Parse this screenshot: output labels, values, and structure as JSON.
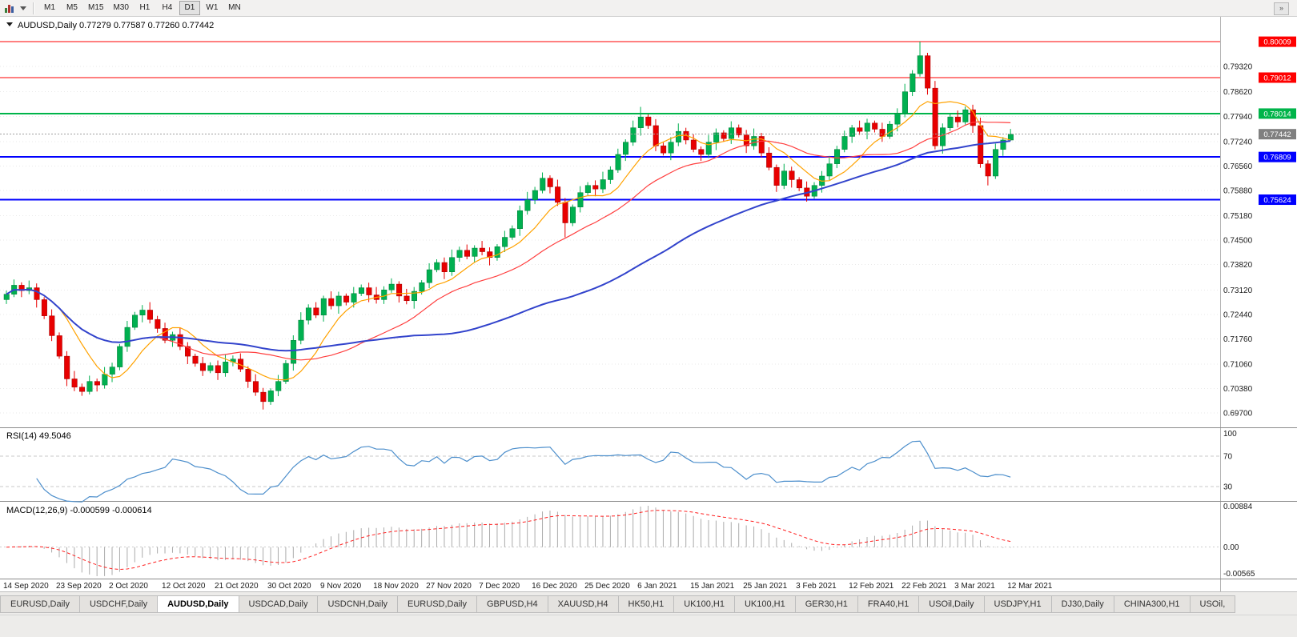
{
  "toolbar": {
    "timeframes": [
      "M1",
      "M5",
      "M15",
      "M30",
      "H1",
      "H4",
      "D1",
      "W1",
      "MN"
    ],
    "active_timeframe": "D1",
    "overflow_icon": "»"
  },
  "chart_header": {
    "symbol": "AUDUSD,Daily",
    "open": "0.77279",
    "high": "0.77587",
    "low": "0.77260",
    "close": "0.77442"
  },
  "price_axis": {
    "ticks": [
      "0.79320",
      "0.78620",
      "0.77940",
      "0.77240",
      "0.76560",
      "0.75880",
      "0.75180",
      "0.74500",
      "0.73820",
      "0.73120",
      "0.72440",
      "0.71760",
      "0.71060",
      "0.70380",
      "0.69700"
    ],
    "current_price": "0.77442"
  },
  "levels": [
    {
      "value": 0.80009,
      "label": "0.80009",
      "color": "#FF0000",
      "width": 1
    },
    {
      "value": 0.79012,
      "label": "0.79012",
      "color": "#FF0000",
      "width": 1
    },
    {
      "value": 0.78014,
      "label": "0.78014",
      "color": "#00B44A",
      "width": 2
    },
    {
      "value": 0.76809,
      "label": "0.76809",
      "color": "#0000FF",
      "width": 2
    },
    {
      "value": 0.75624,
      "label": "0.75624",
      "color": "#0000FF",
      "width": 2
    }
  ],
  "chart_data": {
    "type": "candlestick",
    "title": "AUDUSD Daily",
    "y_axis": {
      "top": 0.803,
      "bottom": 0.6935
    },
    "x_labels": [
      "14 Sep 2020",
      "23 Sep 2020",
      "2 Oct 2020",
      "12 Oct 2020",
      "21 Oct 2020",
      "30 Oct 2020",
      "9 Nov 2020",
      "18 Nov 2020",
      "27 Nov 2020",
      "7 Dec 2020",
      "16 Dec 2020",
      "25 Dec 2020",
      "6 Jan 2021",
      "15 Jan 2021",
      "25 Jan 2021",
      "3 Feb 2021",
      "12 Feb 2021",
      "22 Feb 2021",
      "3 Mar 2021",
      "12 Mar 2021"
    ],
    "candles": [
      [
        0.7285,
        0.731,
        0.7273,
        0.73
      ],
      [
        0.73,
        0.7341,
        0.7292,
        0.7325
      ],
      [
        0.7325,
        0.7333,
        0.7292,
        0.731
      ],
      [
        0.731,
        0.7338,
        0.73,
        0.7318
      ],
      [
        0.7318,
        0.733,
        0.7263,
        0.7285
      ],
      [
        0.7285,
        0.7292,
        0.7231,
        0.724
      ],
      [
        0.724,
        0.7258,
        0.717,
        0.7185
      ],
      [
        0.7185,
        0.7194,
        0.7121,
        0.7128
      ],
      [
        0.7128,
        0.7142,
        0.7045,
        0.7065
      ],
      [
        0.7065,
        0.7087,
        0.7031,
        0.7042
      ],
      [
        0.7042,
        0.7052,
        0.7018,
        0.703
      ],
      [
        0.703,
        0.7074,
        0.7022,
        0.7058
      ],
      [
        0.7058,
        0.7066,
        0.703,
        0.7048
      ],
      [
        0.7048,
        0.7098,
        0.7038,
        0.7078
      ],
      [
        0.7078,
        0.711,
        0.7056,
        0.7098
      ],
      [
        0.7098,
        0.7162,
        0.7089,
        0.7155
      ],
      [
        0.7155,
        0.7226,
        0.714,
        0.7208
      ],
      [
        0.7208,
        0.7251,
        0.7201,
        0.7242
      ],
      [
        0.7242,
        0.727,
        0.7222,
        0.7256
      ],
      [
        0.7256,
        0.7278,
        0.7219,
        0.723
      ],
      [
        0.723,
        0.724,
        0.7193,
        0.7205
      ],
      [
        0.7205,
        0.7221,
        0.7164,
        0.7172
      ],
      [
        0.7172,
        0.7196,
        0.7154,
        0.7188
      ],
      [
        0.7188,
        0.7208,
        0.7145,
        0.7155
      ],
      [
        0.7155,
        0.7167,
        0.7106,
        0.7128
      ],
      [
        0.7128,
        0.7135,
        0.7099,
        0.7108
      ],
      [
        0.7108,
        0.7126,
        0.7073,
        0.7088
      ],
      [
        0.7088,
        0.7111,
        0.7081,
        0.7102
      ],
      [
        0.7102,
        0.7116,
        0.7062,
        0.7082
      ],
      [
        0.7082,
        0.7134,
        0.7071,
        0.7112
      ],
      [
        0.7112,
        0.713,
        0.71,
        0.712
      ],
      [
        0.712,
        0.7136,
        0.7084,
        0.7092
      ],
      [
        0.7092,
        0.71,
        0.704,
        0.7058
      ],
      [
        0.7058,
        0.7078,
        0.7018,
        0.7028
      ],
      [
        0.7028,
        0.704,
        0.698,
        0.7002
      ],
      [
        0.7002,
        0.7039,
        0.6993,
        0.7032
      ],
      [
        0.7032,
        0.7076,
        0.7017,
        0.7058
      ],
      [
        0.7058,
        0.7117,
        0.7051,
        0.7108
      ],
      [
        0.7108,
        0.7186,
        0.7088,
        0.7172
      ],
      [
        0.7172,
        0.725,
        0.7161,
        0.7228
      ],
      [
        0.7228,
        0.7272,
        0.7216,
        0.7262
      ],
      [
        0.7262,
        0.7278,
        0.7234,
        0.7242
      ],
      [
        0.7242,
        0.7296,
        0.7224,
        0.7288
      ],
      [
        0.7288,
        0.7308,
        0.7258,
        0.7268
      ],
      [
        0.7268,
        0.7307,
        0.7246,
        0.7295
      ],
      [
        0.7295,
        0.7302,
        0.7269,
        0.7278
      ],
      [
        0.7278,
        0.732,
        0.7263,
        0.7302
      ],
      [
        0.7302,
        0.7327,
        0.7295,
        0.7318
      ],
      [
        0.7318,
        0.7332,
        0.7278,
        0.7298
      ],
      [
        0.7298,
        0.732,
        0.7274,
        0.7285
      ],
      [
        0.7285,
        0.7322,
        0.7273,
        0.7312
      ],
      [
        0.7312,
        0.7344,
        0.7304,
        0.7328
      ],
      [
        0.7328,
        0.7336,
        0.7277,
        0.7295
      ],
      [
        0.7295,
        0.7315,
        0.7272,
        0.7282
      ],
      [
        0.7282,
        0.732,
        0.726,
        0.7308
      ],
      [
        0.7308,
        0.7339,
        0.7299,
        0.7332
      ],
      [
        0.7332,
        0.7386,
        0.7317,
        0.7368
      ],
      [
        0.7368,
        0.7397,
        0.7361,
        0.7388
      ],
      [
        0.7388,
        0.7402,
        0.7342,
        0.7362
      ],
      [
        0.7362,
        0.7424,
        0.7351,
        0.7402
      ],
      [
        0.7402,
        0.7432,
        0.739,
        0.7422
      ],
      [
        0.7422,
        0.7438,
        0.7397,
        0.7405
      ],
      [
        0.7405,
        0.7436,
        0.7387,
        0.7428
      ],
      [
        0.7428,
        0.7448,
        0.7408,
        0.7418
      ],
      [
        0.7418,
        0.743,
        0.738,
        0.7402
      ],
      [
        0.7402,
        0.7439,
        0.7393,
        0.7432
      ],
      [
        0.7432,
        0.7476,
        0.7417,
        0.7458
      ],
      [
        0.7458,
        0.7491,
        0.7451,
        0.7482
      ],
      [
        0.7482,
        0.7546,
        0.7462,
        0.7532
      ],
      [
        0.7532,
        0.7584,
        0.7521,
        0.7562
      ],
      [
        0.7562,
        0.7598,
        0.755,
        0.7588
      ],
      [
        0.7588,
        0.7638,
        0.758,
        0.7622
      ],
      [
        0.7622,
        0.763,
        0.758,
        0.7598
      ],
      [
        0.7598,
        0.7618,
        0.7545,
        0.7555
      ],
      [
        0.7555,
        0.7567,
        0.7458,
        0.7498
      ],
      [
        0.7498,
        0.7549,
        0.7489,
        0.7542
      ],
      [
        0.7542,
        0.76,
        0.7527,
        0.7582
      ],
      [
        0.7582,
        0.7611,
        0.7575,
        0.7602
      ],
      [
        0.7602,
        0.7616,
        0.7572,
        0.7592
      ],
      [
        0.7592,
        0.764,
        0.7581,
        0.7618
      ],
      [
        0.7618,
        0.7655,
        0.7606,
        0.7645
      ],
      [
        0.7645,
        0.7704,
        0.7637,
        0.7688
      ],
      [
        0.7688,
        0.773,
        0.767,
        0.7722
      ],
      [
        0.7722,
        0.7782,
        0.7712,
        0.7762
      ],
      [
        0.7762,
        0.782,
        0.774,
        0.7792
      ],
      [
        0.7792,
        0.7799,
        0.7759,
        0.7768
      ],
      [
        0.7768,
        0.7786,
        0.7697,
        0.7712
      ],
      [
        0.7712,
        0.7721,
        0.7685,
        0.7692
      ],
      [
        0.7692,
        0.7736,
        0.7672,
        0.7722
      ],
      [
        0.7722,
        0.7774,
        0.7711,
        0.7752
      ],
      [
        0.7752,
        0.7762,
        0.7716,
        0.7728
      ],
      [
        0.7728,
        0.7744,
        0.7694,
        0.7702
      ],
      [
        0.7702,
        0.771,
        0.767,
        0.7688
      ],
      [
        0.7688,
        0.7742,
        0.7678,
        0.7722
      ],
      [
        0.7722,
        0.776,
        0.77,
        0.7748
      ],
      [
        0.7748,
        0.7755,
        0.7723,
        0.7732
      ],
      [
        0.7732,
        0.778,
        0.7717,
        0.7762
      ],
      [
        0.7762,
        0.7771,
        0.7735,
        0.7742
      ],
      [
        0.7742,
        0.7756,
        0.7692,
        0.7712
      ],
      [
        0.7712,
        0.776,
        0.7701,
        0.7738
      ],
      [
        0.7738,
        0.7748,
        0.768,
        0.7692
      ],
      [
        0.7692,
        0.7708,
        0.7644,
        0.7652
      ],
      [
        0.7652,
        0.766,
        0.7584,
        0.7602
      ],
      [
        0.7602,
        0.7662,
        0.7592,
        0.7642
      ],
      [
        0.7642,
        0.7654,
        0.7596,
        0.7618
      ],
      [
        0.7618,
        0.7625,
        0.7586,
        0.7595
      ],
      [
        0.7595,
        0.7613,
        0.7557,
        0.7572
      ],
      [
        0.7572,
        0.7611,
        0.7565,
        0.7602
      ],
      [
        0.7602,
        0.7642,
        0.7582,
        0.7628
      ],
      [
        0.7628,
        0.7684,
        0.7617,
        0.7662
      ],
      [
        0.7662,
        0.7712,
        0.765,
        0.7702
      ],
      [
        0.7702,
        0.7754,
        0.7694,
        0.7738
      ],
      [
        0.7738,
        0.777,
        0.772,
        0.7762
      ],
      [
        0.7762,
        0.7782,
        0.7742,
        0.7752
      ],
      [
        0.7752,
        0.7787,
        0.773,
        0.7775
      ],
      [
        0.7775,
        0.7782,
        0.7749,
        0.7758
      ],
      [
        0.7758,
        0.7776,
        0.7723,
        0.7738
      ],
      [
        0.7738,
        0.7781,
        0.7731,
        0.7772
      ],
      [
        0.7772,
        0.7816,
        0.7752,
        0.7802
      ],
      [
        0.7802,
        0.7884,
        0.7791,
        0.7862
      ],
      [
        0.7862,
        0.7922,
        0.785,
        0.7912
      ],
      [
        0.7912,
        0.8001,
        0.7904,
        0.7962
      ],
      [
        0.7962,
        0.797,
        0.7854,
        0.7872
      ],
      [
        0.7872,
        0.7892,
        0.7702,
        0.7712
      ],
      [
        0.7712,
        0.7774,
        0.769,
        0.7762
      ],
      [
        0.7762,
        0.7799,
        0.7753,
        0.7792
      ],
      [
        0.7792,
        0.781,
        0.7763,
        0.7778
      ],
      [
        0.7778,
        0.7821,
        0.7771,
        0.7812
      ],
      [
        0.7812,
        0.7826,
        0.7748,
        0.7768
      ],
      [
        0.7768,
        0.779,
        0.7651,
        0.7662
      ],
      [
        0.7662,
        0.7672,
        0.7602,
        0.7628
      ],
      [
        0.7628,
        0.7718,
        0.762,
        0.7702
      ],
      [
        0.7702,
        0.7736,
        0.7684,
        0.7728
      ],
      [
        0.77279,
        0.77587,
        0.7726,
        0.77442
      ]
    ],
    "moving_averages": [
      {
        "name": "fast-ma",
        "period": 8,
        "color": "#FFA200",
        "width": 1.2
      },
      {
        "name": "mid-ma",
        "period": 21,
        "color": "#FF4040",
        "width": 1.2
      },
      {
        "name": "slow-ma",
        "period": 55,
        "color": "#3344CC",
        "width": 2
      }
    ],
    "indicators": {
      "rsi": {
        "label": "RSI(14)",
        "value": "49.5046",
        "period": 14,
        "axis_labels": [
          "100",
          "70",
          "30"
        ],
        "dashed_levels": [
          70,
          30
        ],
        "color": "#4D8FCC"
      },
      "macd": {
        "label": "MACD(12,26,9)",
        "values": "-0.000599 -0.000614",
        "fast_period": 12,
        "slow_period": 26,
        "signal_period": 9,
        "axis_labels": [
          "0.00884",
          "0.00",
          "-0.00565"
        ]
      }
    }
  },
  "tabs": {
    "items": [
      "EURUSD,Daily",
      "USDCHF,Daily",
      "AUDUSD,Daily",
      "USDCAD,Daily",
      "USDCNH,Daily",
      "EURUSD,Daily",
      "GBPUSD,H4",
      "XAUUSD,H4",
      "HK50,H1",
      "UK100,H1",
      "UK100,H1",
      "GER30,H1",
      "FRA40,H1",
      "USOil,Daily",
      "USDJPY,H1",
      "DJ30,Daily",
      "CHINA300,H1",
      "USOil,"
    ],
    "active_index": 2
  },
  "colors": {
    "candle_up": "#00B050",
    "candle_up_border": "#007B36",
    "candle_down": "#E80000",
    "candle_down_border": "#A00000",
    "grid": "#E9E9E9",
    "axis_text": "#1A1A1A",
    "macd_hist": "#ABABAB",
    "macd_signal": "#FF2020",
    "panel_separator": "#8C8C8C",
    "current_price_tag": "#808080"
  }
}
